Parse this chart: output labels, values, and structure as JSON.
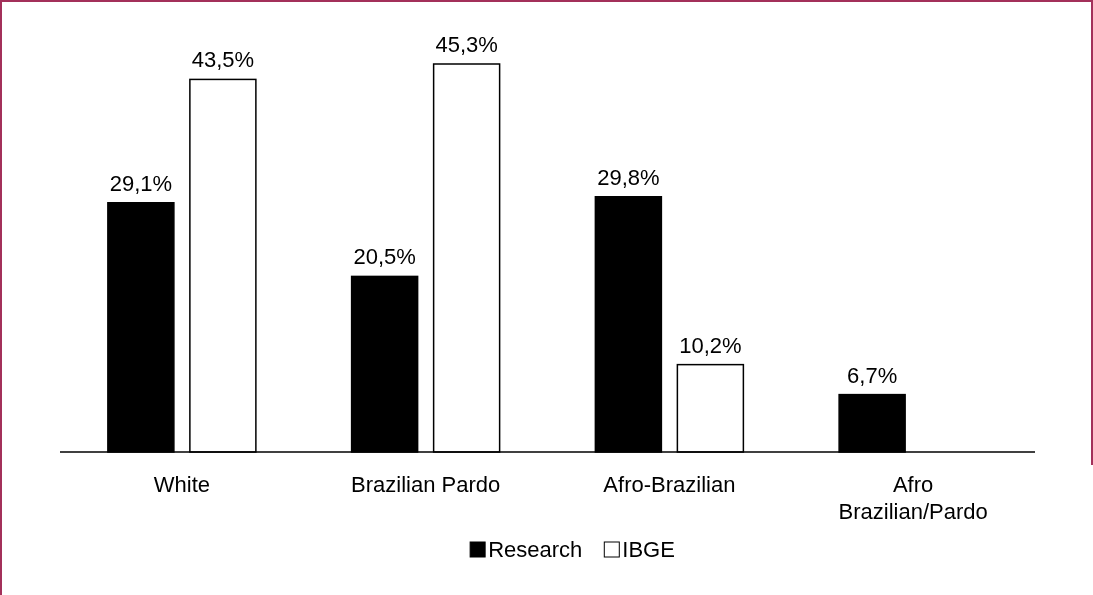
{
  "chart_data": {
    "type": "bar",
    "categories": [
      "White",
      "Brazilian Pardo",
      "Afro-Brazilian",
      "Afro Brazilian/Pardo"
    ],
    "series": [
      {
        "name": "Research",
        "color": "#000000",
        "values": [
          29.1,
          20.5,
          29.8,
          6.7
        ],
        "value_labels": [
          "29,1%",
          "20,5%",
          "29,8%",
          "6,7%"
        ]
      },
      {
        "name": "IBGE",
        "color": "#ffffff",
        "values": [
          43.5,
          45.3,
          10.2,
          null
        ],
        "value_labels": [
          "43,5%",
          "45,3%",
          "10,2%",
          null
        ]
      }
    ],
    "legend": "bottom"
  }
}
